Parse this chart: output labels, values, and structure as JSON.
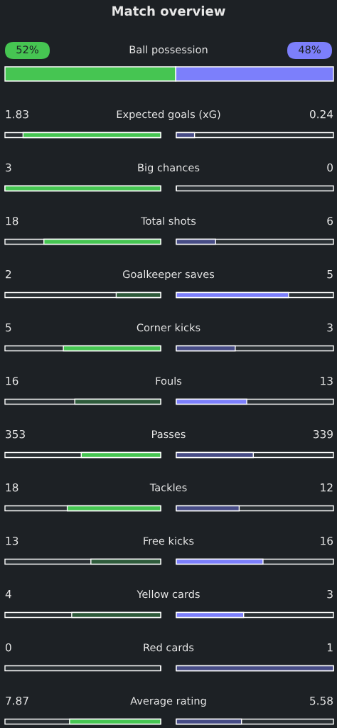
{
  "chart_data": {
    "type": "other",
    "title": "Match overview",
    "categories": [
      "Ball possession",
      "Expected goals (xG)",
      "Big chances",
      "Total shots",
      "Goalkeeper saves",
      "Corner kicks",
      "Fouls",
      "Passes",
      "Tackles",
      "Free kicks",
      "Yellow cards",
      "Red cards",
      "Average rating"
    ],
    "series": [
      {
        "values": [
          52,
          1.83,
          3,
          18,
          2,
          5,
          16,
          353,
          18,
          13,
          4,
          0,
          7.87
        ],
        "value_labels": [
          "52%",
          "1.83",
          "3",
          "18",
          "2",
          "5",
          "16",
          "353",
          "18",
          "13",
          "4",
          "0",
          "7.87"
        ],
        "colors": [
          "#46c552",
          "#46c552",
          "#46c552",
          "#46c552",
          "#2e5b3b",
          "#46c552",
          "#2e5b3b",
          "#46c552",
          "#46c552",
          "#2e5b3b",
          "#2e5b3b",
          "#2e5b3b",
          "#46c552"
        ]
      },
      {
        "values": [
          48,
          0.24,
          0,
          6,
          5,
          3,
          13,
          339,
          12,
          16,
          3,
          1,
          5.58
        ],
        "value_labels": [
          "48%",
          "0.24",
          "0",
          "6",
          "5",
          "3",
          "13",
          "339",
          "12",
          "16",
          "3",
          "1",
          "5.58"
        ],
        "colors": [
          "#7c7ffb",
          "#474c86",
          "#474c86",
          "#474c86",
          "#7c7ffb",
          "#474c86",
          "#7c7ffb",
          "#474c86",
          "#474c86",
          "#7c7ffb",
          "#7c7ffb",
          "#474c86",
          "#474c86"
        ]
      }
    ]
  }
}
